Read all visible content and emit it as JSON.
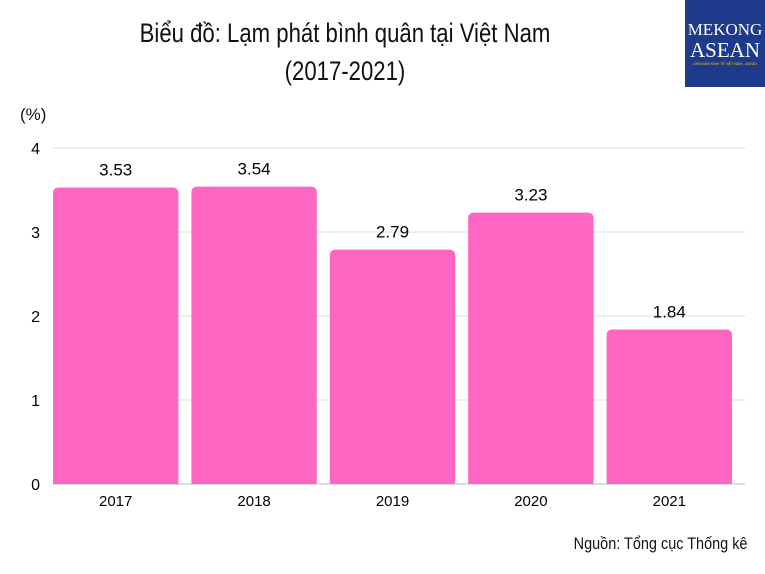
{
  "title_line1": "Biểu đồ: Lạm phát bình quân tại Việt Nam",
  "title_line2": "(2017-2021)",
  "logo": {
    "line1": "MEKONG",
    "line2": "ASEAN",
    "tagline": "DIỄN ĐÀN KINH TẾ VIỆT NAM - ASEAN",
    "bg_color": "#1e3a8a"
  },
  "source": "Nguồn: Tổng cục Thống kê",
  "chart_data": {
    "type": "bar",
    "ylabel": "(%)",
    "categories": [
      "2017",
      "2018",
      "2019",
      "2020",
      "2021"
    ],
    "values": [
      3.53,
      3.54,
      2.79,
      3.23,
      1.84
    ],
    "data_labels": [
      "3.53",
      "3.54",
      "2.79",
      "3.23",
      "1.84"
    ],
    "ylim": [
      0,
      4
    ],
    "yticks": [
      0,
      1,
      2,
      3,
      4
    ],
    "grid": true,
    "bar_color": "#ff66c4"
  }
}
